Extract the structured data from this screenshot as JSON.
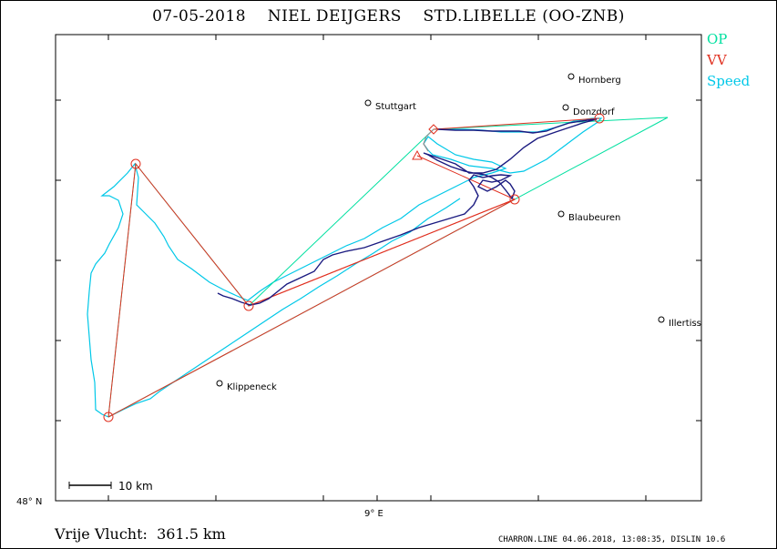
{
  "title": "07-05-2018    NIEL DEIJGERS    STD.LIBELLE (OO-ZNB)",
  "legend": {
    "op": "OP",
    "vv": "VV",
    "speed": "Speed"
  },
  "colors": {
    "op": "#00e0a0",
    "vv": "#e03020",
    "speed": "#00c8e8",
    "track": "#1a1a80",
    "frame": "#000000"
  },
  "towns": [
    {
      "name": "Hornberg"
    },
    {
      "name": "Stuttgart"
    },
    {
      "name": "Donzdorf"
    },
    {
      "name": "Blaubeuren"
    },
    {
      "name": "Illertiss"
    },
    {
      "name": "Klippeneck"
    }
  ],
  "axes": {
    "lat_label": "48° N",
    "lon_label": "9° E"
  },
  "scale": {
    "label": "10 km"
  },
  "distance": "Vrije Vlucht:  361.5 km",
  "footer": "CHARRON.LINE 04.06.2018, 13:08:35, DISLIN 10.6"
}
